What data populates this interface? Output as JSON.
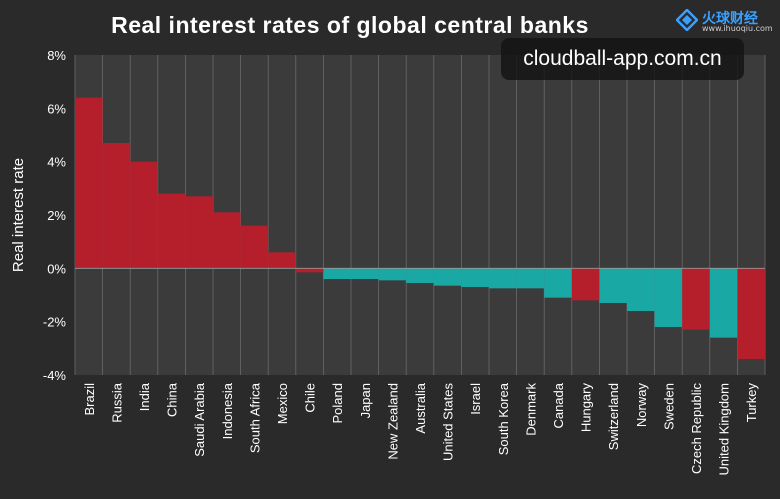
{
  "title": "Real interest rates of global central banks",
  "logo": {
    "name": "火球财经",
    "url": "www.ihuoqiu.com"
  },
  "watermark": "cloudball-app.com.cn",
  "colors": {
    "background": "#2a2a2a",
    "plot_background": "#3b3b3b",
    "positive": "#b51f2c",
    "negative": "#1aa8a5",
    "grid": "#6a6a6a"
  },
  "chart_data": {
    "type": "bar",
    "title": "Real interest rates of global central banks",
    "ylabel": "Real interest rate",
    "ylim": [
      -4,
      8
    ],
    "yticks": [
      8,
      6,
      4,
      2,
      0,
      -2,
      -4
    ],
    "ytick_labels": [
      "8%",
      "6%",
      "4%",
      "2%",
      "0%",
      "-2%",
      "-4%"
    ],
    "grid": "vertical lines between categories",
    "categories": [
      "Brazil",
      "Russia",
      "India",
      "China",
      "Saudi Arabia",
      "Indonesia",
      "South Africa",
      "Mexico",
      "Chile",
      "Poland",
      "Japan",
      "New Zealand",
      "Australia",
      "United States",
      "Israel",
      "South Korea",
      "Denmark",
      "Canada",
      "Hungary",
      "Switzerland",
      "Norway",
      "Sweden",
      "Czech Republic",
      "United Kingdom",
      "Turkey"
    ],
    "values": [
      6.4,
      4.7,
      4.0,
      2.8,
      2.7,
      2.1,
      1.6,
      0.6,
      -0.15,
      -0.4,
      -0.4,
      -0.45,
      -0.55,
      -0.65,
      -0.7,
      -0.75,
      -0.75,
      -1.1,
      -1.2,
      -1.3,
      -1.6,
      -2.2,
      -2.3,
      -2.6,
      -3.4
    ],
    "bar_colors": [
      "red",
      "red",
      "red",
      "red",
      "red",
      "red",
      "red",
      "red",
      "red",
      "teal",
      "teal",
      "teal",
      "teal",
      "teal",
      "teal",
      "teal",
      "teal",
      "teal",
      "red",
      "teal",
      "teal",
      "teal",
      "red",
      "teal",
      "red"
    ]
  }
}
